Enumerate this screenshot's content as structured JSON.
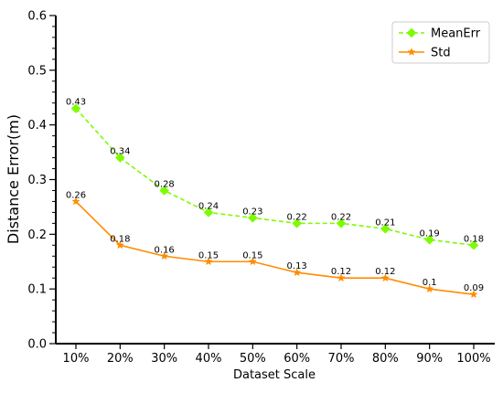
{
  "chart_data": {
    "type": "line",
    "title": "",
    "xlabel": "Dataset Scale",
    "ylabel": "Distance Error(m)",
    "categories": [
      "10%",
      "20%",
      "30%",
      "40%",
      "50%",
      "60%",
      "70%",
      "80%",
      "90%",
      "100%"
    ],
    "ylim": [
      0,
      0.6
    ],
    "yticks": [
      "0.0",
      "0.1",
      "0.2",
      "0.3",
      "0.4",
      "0.5",
      "0.6"
    ],
    "grid": false,
    "legend_position": "top-right",
    "series": [
      {
        "name": "MeanErr",
        "values": [
          0.43,
          0.34,
          0.28,
          0.24,
          0.23,
          0.22,
          0.22,
          0.21,
          0.19,
          0.18
        ],
        "labels": [
          "0.43",
          "0.34",
          "0.28",
          "0.24",
          "0.23",
          "0.22",
          "0.22",
          "0.21",
          "0.19",
          "0.18"
        ],
        "color": "#7cfc00",
        "line_style": "dashed",
        "marker": "diamond"
      },
      {
        "name": "Std",
        "values": [
          0.26,
          0.18,
          0.16,
          0.15,
          0.15,
          0.13,
          0.12,
          0.12,
          0.1,
          0.09
        ],
        "labels": [
          "0.26",
          "0.18",
          "0.16",
          "0.15",
          "0.15",
          "0.13",
          "0.12",
          "0.12",
          "0.1",
          "0.09"
        ],
        "color": "#ff8c00",
        "line_style": "solid",
        "marker": "star"
      }
    ]
  }
}
